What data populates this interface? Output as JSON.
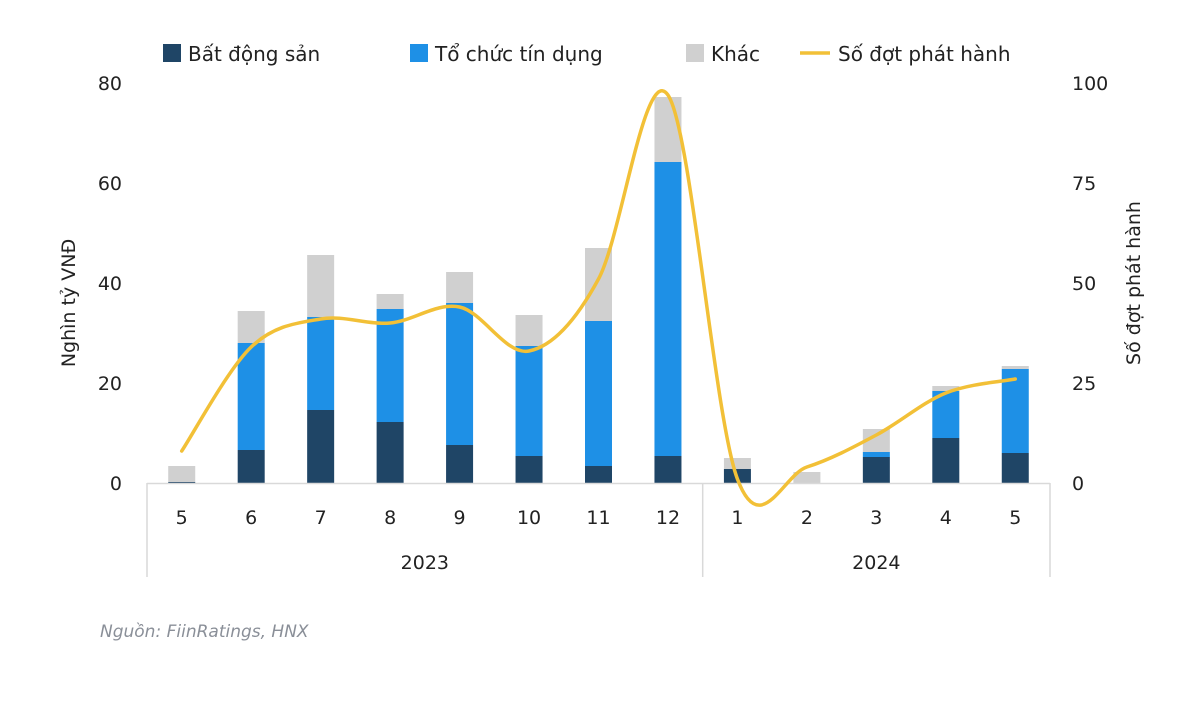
{
  "chart_data": {
    "type": "bar",
    "stacked": true,
    "categories": [
      "5",
      "6",
      "7",
      "8",
      "9",
      "10",
      "11",
      "12",
      "1",
      "2",
      "3",
      "4",
      "5"
    ],
    "groups": [
      {
        "label": "2023",
        "count": 8
      },
      {
        "label": "2024",
        "count": 5
      }
    ],
    "series": [
      {
        "name": "Bất động sản",
        "color": "#1f4566",
        "axis": "left",
        "values": [
          0.2,
          6.6,
          14.6,
          12.2,
          7.6,
          5.4,
          3.4,
          5.4,
          2.8,
          0,
          5.2,
          9.0,
          6.0
        ]
      },
      {
        "name": "Tổ chức tín dụng",
        "color": "#1e90e6",
        "axis": "left",
        "values": [
          0,
          21.4,
          18.6,
          22.6,
          28.4,
          22.0,
          29.0,
          58.8,
          0,
          0,
          1.0,
          9.4,
          16.8
        ]
      },
      {
        "name": "Khác",
        "color": "#d0d0d0",
        "axis": "left",
        "values": [
          3.2,
          6.4,
          12.4,
          3.0,
          6.2,
          6.2,
          14.6,
          13.0,
          2.2,
          2.2,
          4.6,
          1.0,
          0.6
        ]
      },
      {
        "name": "Số đợt phát hành",
        "type": "line",
        "color": "#f2c037",
        "axis": "right",
        "values": [
          8,
          34,
          41,
          40,
          44,
          33,
          51,
          97,
          1,
          4,
          12,
          22.5,
          26
        ]
      }
    ],
    "ylabel": "Nghìn tỷ VNĐ",
    "y2label": "Số đợt phát hành",
    "ylim": [
      0,
      80
    ],
    "y2lim": [
      0,
      100
    ],
    "yticks": [
      "0",
      "20",
      "40",
      "60",
      "80"
    ],
    "y2ticks": [
      "0",
      "25",
      "50",
      "75",
      "100"
    ],
    "legend": "top",
    "grid": false
  },
  "source": "Nguồn: FiinRatings, HNX"
}
